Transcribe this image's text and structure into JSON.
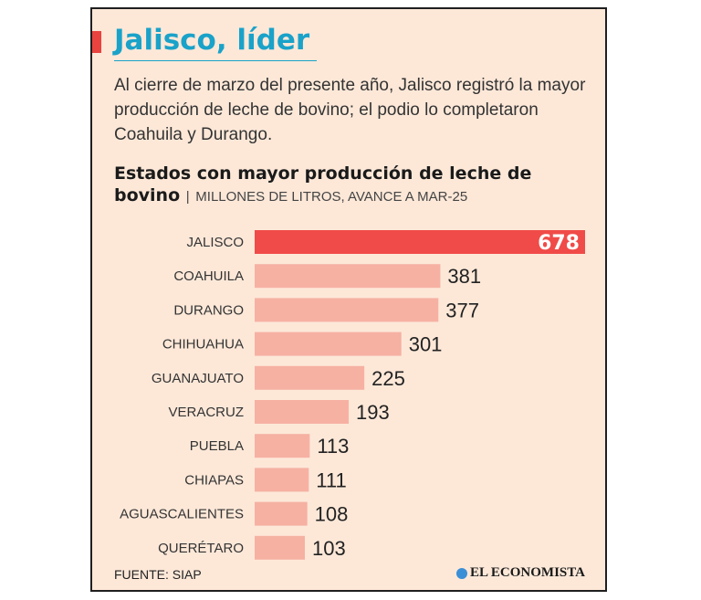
{
  "header": {
    "title": "Jalisco, líder",
    "intro": "Al cierre de marzo del presente año, Jalisco registró la mayor producción de leche de bovino; el podio lo completaron Coahuila y Durango."
  },
  "chart_title": {
    "main": "Estados con mayor producción de leche de bovino",
    "separator": "|",
    "subtitle": "MILLONES DE LITROS, AVANCE A MAR-25"
  },
  "chart_data": {
    "type": "bar",
    "orientation": "horizontal",
    "title": "Estados con mayor producción de leche de bovino",
    "subtitle": "MILLONES DE LITROS, AVANCE A MAR-25",
    "categories": [
      "JALISCO",
      "COAHUILA",
      "DURANGO",
      "CHIHUAHUA",
      "GUANAJUATO",
      "VERACRUZ",
      "PUEBLA",
      "CHIAPAS",
      "AGUASCALIENTES",
      "QUERÉTARO"
    ],
    "values": [
      678,
      381,
      377,
      301,
      225,
      193,
      113,
      111,
      108,
      103
    ],
    "unit": "MILLONES DE LITROS",
    "grid": false,
    "legend": "none",
    "colors": {
      "highlight": "#f04b48",
      "bar": "#f6b1a3"
    }
  },
  "footer": {
    "source": "FUENTE: SIAP",
    "brand": "EL ECONOMISTA",
    "brand_icon": "globe-icon"
  },
  "colors": {
    "accent": "#e8433f",
    "title": "#1aa2c9",
    "background": "#fde8d8",
    "brand_icon": "#3b8fd6"
  }
}
